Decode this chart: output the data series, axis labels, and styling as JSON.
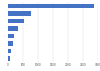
{
  "values": [
    2871,
    770,
    527,
    344,
    215,
    156,
    104,
    52
  ],
  "bar_color": "#4472c4",
  "background_color": "#ffffff",
  "grid_color": "#d9d9d9",
  "xlim": [
    0,
    3000
  ],
  "xticks": [
    0,
    500,
    1000,
    1500,
    2000,
    2500,
    3000
  ]
}
